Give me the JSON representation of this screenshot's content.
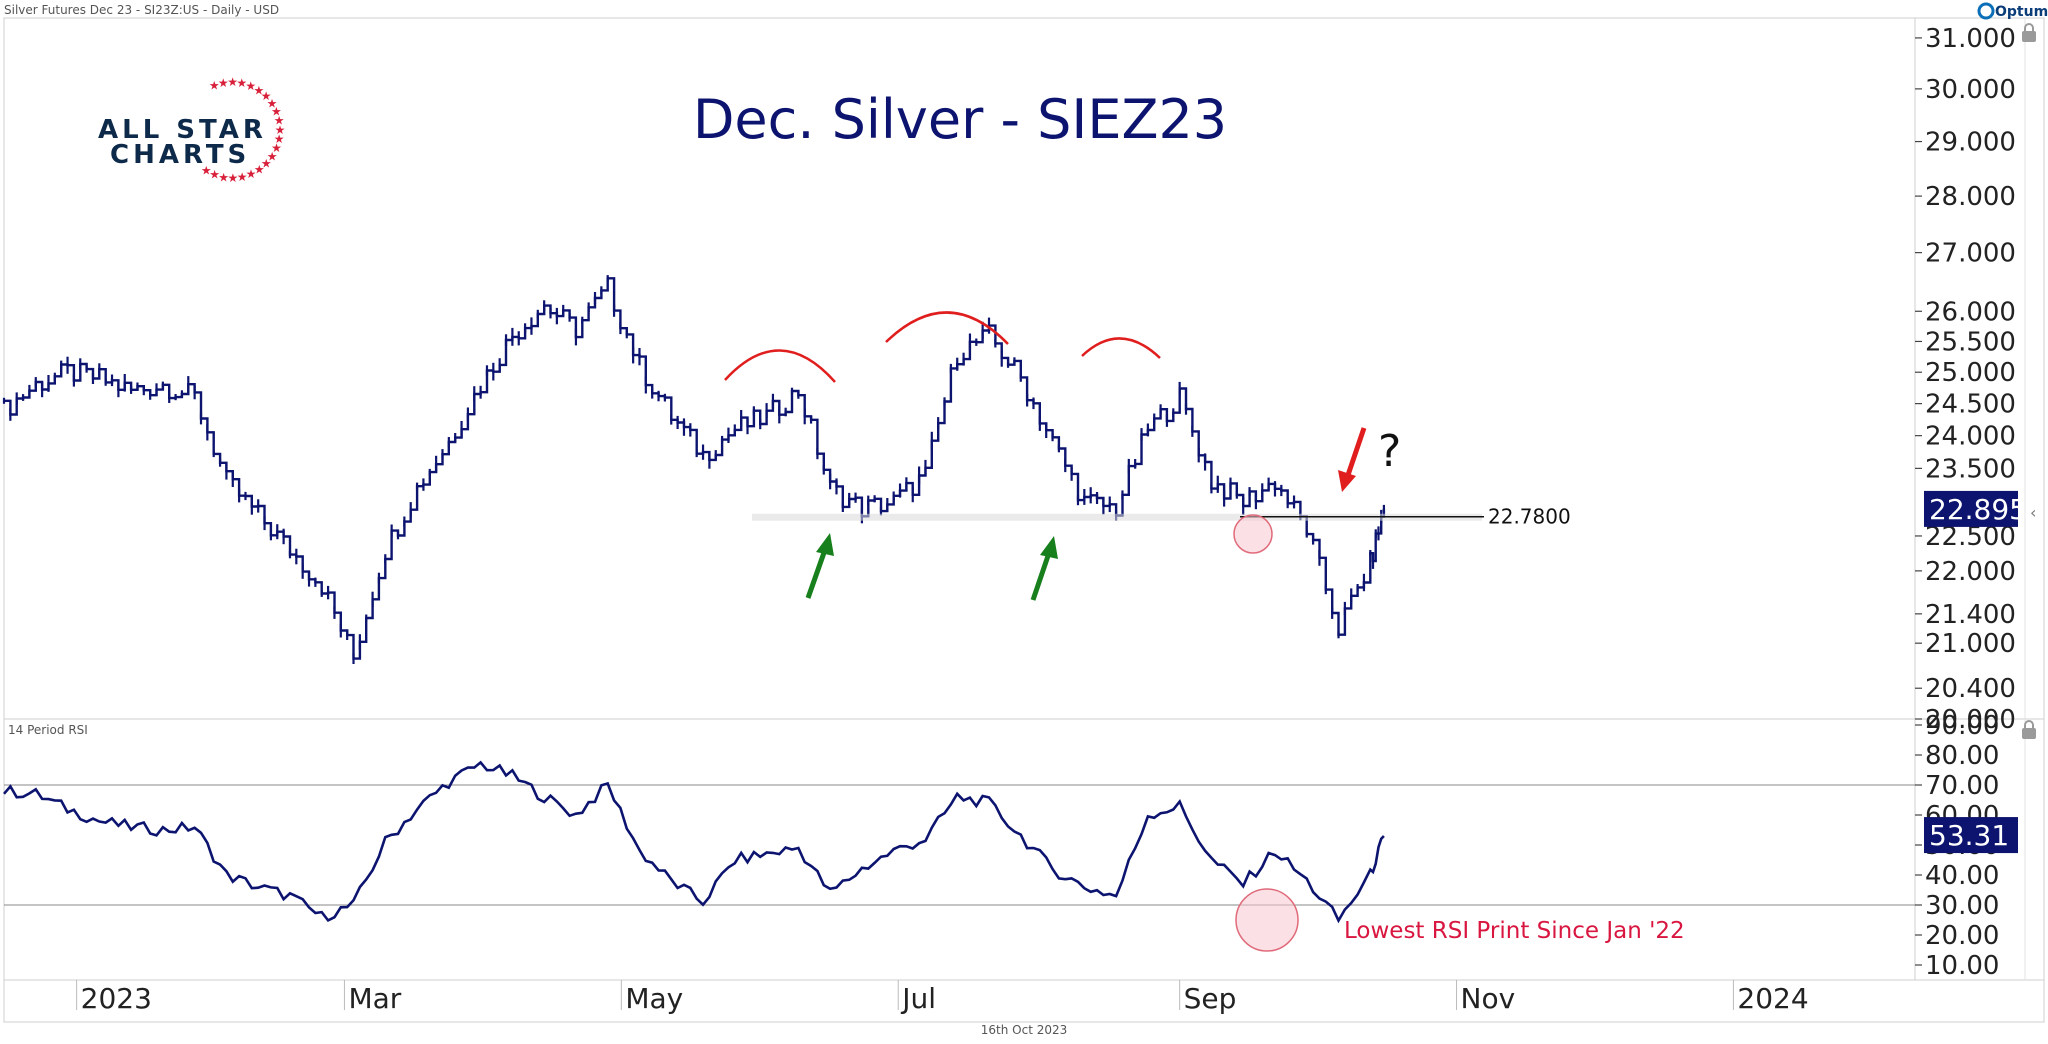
{
  "header": {
    "instrument": "Silver Futures Dec 23 - SI23Z:US - Daily - USD",
    "brand": "Optuma",
    "footer_date": "16th Oct 2023"
  },
  "logo": {
    "line1": "ALL STAR",
    "line2": "CHARTS"
  },
  "annotations": {
    "level_label": "22.7800",
    "question": "?",
    "rsi_note": "Lowest RSI Print Since Jan '22"
  },
  "colors": {
    "price": "#0c1470",
    "annotation_red": "#e01e1e",
    "arrow_green": "#17801c",
    "flag_bg": "#0c1470",
    "guide_gray": "#8a8a8a"
  },
  "chart_data": [
    {
      "type": "line",
      "title": "Dec. Silver - SIEZ23",
      "style": "ohlc-bars",
      "x_axis": {
        "type": "date",
        "range": [
          "2022-12-16",
          "2024-02-10"
        ],
        "tick_labels": [
          "2023",
          "Mar",
          "May",
          "Jul",
          "Sep",
          "Nov",
          "2024"
        ],
        "tick_dates": [
          "2023-01-01",
          "2023-03-01",
          "2023-05-01",
          "2023-07-01",
          "2023-09-01",
          "2023-11-01",
          "2024-01-01"
        ]
      },
      "y_axis": {
        "scale": "log",
        "range": [
          20.0,
          31.4
        ],
        "tick_labels": [
          "31.000",
          "30.000",
          "29.000",
          "28.000",
          "27.000",
          "26.000",
          "25.500",
          "25.000",
          "24.500",
          "24.000",
          "23.500",
          "22.500",
          "22.000",
          "21.400",
          "21.000",
          "20.400",
          "20.000"
        ],
        "tick_values": [
          31.0,
          30.0,
          29.0,
          28.0,
          27.0,
          26.0,
          25.5,
          25.0,
          24.5,
          24.0,
          23.5,
          22.5,
          22.0,
          21.4,
          21.0,
          20.4,
          20.0
        ]
      },
      "last_price": "22.895",
      "last_price_value": 22.895,
      "support_level": 22.78,
      "series": [
        {
          "x": [
            "2022-12-16",
            "2022-12-23",
            "2022-12-30",
            "2023-01-06",
            "2023-01-13",
            "2023-01-20",
            "2023-01-27",
            "2023-02-03",
            "2023-02-10",
            "2023-02-17",
            "2023-02-24",
            "2023-03-03",
            "2023-03-10",
            "2023-03-17",
            "2023-03-24",
            "2023-03-31",
            "2023-04-07",
            "2023-04-14",
            "2023-04-21",
            "2023-04-28",
            "2023-05-05",
            "2023-05-12",
            "2023-05-19",
            "2023-05-26",
            "2023-06-02",
            "2023-06-09",
            "2023-06-16",
            "2023-06-23",
            "2023-06-30",
            "2023-07-07",
            "2023-07-14",
            "2023-07-21",
            "2023-07-28",
            "2023-08-04",
            "2023-08-11",
            "2023-08-18",
            "2023-08-25",
            "2023-09-01",
            "2023-09-08",
            "2023-09-15",
            "2023-09-22",
            "2023-09-29",
            "2023-10-06",
            "2023-10-13",
            "2023-10-16"
          ],
          "y": [
            24.4,
            24.8,
            25.0,
            24.9,
            24.7,
            24.8,
            24.6,
            23.3,
            22.8,
            22.3,
            21.8,
            20.8,
            22.3,
            23.2,
            23.9,
            24.8,
            25.6,
            26.1,
            25.7,
            26.4,
            25.1,
            24.3,
            23.7,
            24.1,
            24.3,
            24.7,
            23.2,
            22.9,
            23.0,
            23.4,
            25.3,
            25.6,
            24.9,
            23.9,
            23.0,
            22.9,
            24.1,
            24.6,
            23.3,
            23.0,
            23.3,
            22.6,
            21.2,
            22.1,
            22.9
          ]
        }
      ]
    },
    {
      "type": "line",
      "title": "14 Period RSI",
      "x_axis": {
        "type": "date",
        "range": [
          "2022-12-16",
          "2024-02-10"
        ]
      },
      "y_axis": {
        "range": [
          5,
          92
        ],
        "tick_labels": [
          "90.00",
          "80.00",
          "70.00",
          "60.00",
          "50.00",
          "40.00",
          "30.00",
          "20.00",
          "10.00"
        ],
        "tick_values": [
          90,
          80,
          70,
          60,
          50,
          40,
          30,
          20,
          10
        ]
      },
      "reference_lines": [
        70,
        30
      ],
      "last_value": "53.31",
      "last_value_num": 53.31,
      "series": [
        {
          "x": [
            "2022-12-16",
            "2022-12-23",
            "2022-12-30",
            "2023-01-06",
            "2023-01-13",
            "2023-01-20",
            "2023-01-27",
            "2023-02-03",
            "2023-02-10",
            "2023-02-17",
            "2023-02-24",
            "2023-03-03",
            "2023-03-10",
            "2023-03-17",
            "2023-03-24",
            "2023-03-31",
            "2023-04-07",
            "2023-04-14",
            "2023-04-21",
            "2023-04-28",
            "2023-05-05",
            "2023-05-12",
            "2023-05-19",
            "2023-05-26",
            "2023-06-02",
            "2023-06-09",
            "2023-06-16",
            "2023-06-23",
            "2023-06-30",
            "2023-07-07",
            "2023-07-14",
            "2023-07-21",
            "2023-07-28",
            "2023-08-04",
            "2023-08-11",
            "2023-08-18",
            "2023-08-25",
            "2023-09-01",
            "2023-09-08",
            "2023-09-15",
            "2023-09-22",
            "2023-09-29",
            "2023-10-06",
            "2023-10-13",
            "2023-10-16"
          ],
          "y": [
            68,
            67,
            62,
            58,
            56,
            55,
            56,
            40,
            36,
            33,
            26,
            30,
            51,
            62,
            71,
            77,
            73,
            66,
            60,
            70,
            48,
            38,
            31,
            45,
            47,
            49,
            34,
            42,
            48,
            52,
            66,
            64,
            53,
            42,
            36,
            33,
            60,
            63,
            45,
            37,
            48,
            38,
            25,
            40,
            53
          ]
        }
      ]
    }
  ]
}
